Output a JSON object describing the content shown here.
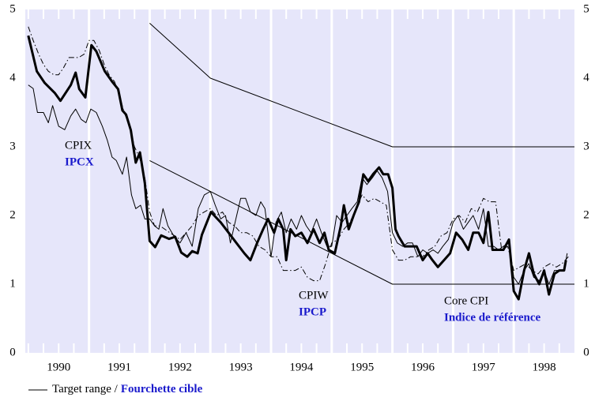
{
  "chart_data": {
    "type": "line",
    "xlim": [
      1989.95,
      1999.0
    ],
    "ylim": [
      0,
      5
    ],
    "yticks": [
      0,
      1,
      2,
      3,
      4,
      5
    ],
    "xticks": [
      {
        "value": 1990.5,
        "label": "1990"
      },
      {
        "value": 1991.5,
        "label": "1991"
      },
      {
        "value": 1992.5,
        "label": "1992"
      },
      {
        "value": 1993.5,
        "label": "1993"
      },
      {
        "value": 1994.5,
        "label": "1994"
      },
      {
        "value": 1995.5,
        "label": "1995"
      },
      {
        "value": 1996.5,
        "label": "1996"
      },
      {
        "value": 1997.5,
        "label": "1997"
      },
      {
        "value": 1998.5,
        "label": "1998"
      }
    ],
    "xgrid": [
      1991,
      1992,
      1993,
      1994,
      1995,
      1996,
      1997,
      1998
    ],
    "background": "#e6e6fa",
    "series": [
      {
        "name": "CPIX",
        "name_fr": "IPCX",
        "color": "#000000",
        "width": 3,
        "dash": "none",
        "x": [
          1990.0,
          1990.14,
          1990.27,
          1990.44,
          1990.53,
          1990.7,
          1990.78,
          1990.84,
          1990.94,
          1991.04,
          1991.12,
          1991.26,
          1991.38,
          1991.48,
          1991.55,
          1991.61,
          1991.69,
          1991.77,
          1991.84,
          1991.92,
          1992.0,
          1992.09,
          1992.19,
          1992.32,
          1992.42,
          1992.52,
          1992.62,
          1992.7,
          1992.79,
          1992.86,
          1993.01,
          1993.17,
          1993.3,
          1993.43,
          1993.56,
          1993.66,
          1993.77,
          1993.87,
          1993.95,
          1994.05,
          1994.12,
          1994.2,
          1994.25,
          1994.32,
          1994.4,
          1994.5,
          1994.6,
          1994.7,
          1994.8,
          1994.88,
          1994.95,
          1995.05,
          1995.15,
          1995.2,
          1995.28,
          1995.36,
          1995.45,
          1995.52,
          1995.6,
          1995.68,
          1995.78,
          1995.85,
          1995.93,
          1996.0,
          1996.05,
          1996.1,
          1996.2,
          1996.3,
          1996.4,
          1996.5,
          1996.58,
          1996.66,
          1996.75,
          1996.85,
          1996.95,
          1997.05,
          1997.15,
          1997.25,
          1997.33,
          1997.42,
          1997.5,
          1997.58,
          1997.65,
          1997.75,
          1997.83,
          1997.92,
          1998.0,
          1998.08,
          1998.17,
          1998.25,
          1998.33,
          1998.42,
          1998.5,
          1998.58,
          1998.67,
          1998.75,
          1998.83,
          1998.86
        ],
        "values": [
          4.62,
          4.1,
          3.93,
          3.78,
          3.67,
          3.9,
          4.08,
          3.84,
          3.72,
          4.48,
          4.39,
          4.1,
          3.95,
          3.84,
          3.53,
          3.47,
          3.24,
          2.77,
          2.92,
          2.47,
          1.63,
          1.54,
          1.71,
          1.66,
          1.69,
          1.46,
          1.4,
          1.48,
          1.45,
          1.72,
          2.05,
          1.9,
          1.75,
          1.6,
          1.45,
          1.35,
          1.6,
          1.8,
          1.95,
          1.75,
          1.95,
          1.8,
          1.35,
          1.8,
          1.7,
          1.75,
          1.6,
          1.8,
          1.6,
          1.75,
          1.5,
          1.45,
          1.85,
          2.15,
          1.8,
          2.0,
          2.2,
          2.6,
          2.5,
          2.6,
          2.7,
          2.6,
          2.6,
          2.4,
          1.8,
          1.7,
          1.55,
          1.55,
          1.55,
          1.35,
          1.45,
          1.35,
          1.25,
          1.35,
          1.45,
          1.75,
          1.65,
          1.5,
          1.75,
          1.75,
          1.6,
          2.05,
          1.5,
          1.5,
          1.5,
          1.65,
          0.9,
          0.78,
          1.2,
          1.45,
          1.15,
          1.0,
          1.2,
          0.85,
          1.15,
          1.2,
          1.2,
          1.35
        ]
      },
      {
        "name": "CPIW",
        "name_fr": "IPCP",
        "color": "#000000",
        "width": 1,
        "dash": "none",
        "x": [
          1990.0,
          1990.08,
          1990.15,
          1990.25,
          1990.33,
          1990.4,
          1990.5,
          1990.6,
          1990.7,
          1990.78,
          1990.87,
          1990.95,
          1991.03,
          1991.12,
          1991.22,
          1991.3,
          1991.38,
          1991.45,
          1991.55,
          1991.62,
          1991.7,
          1991.77,
          1991.85,
          1991.92,
          1992.0,
          1992.08,
          1992.15,
          1992.22,
          1992.3,
          1992.4,
          1992.5,
          1992.6,
          1992.7,
          1992.8,
          1992.9,
          1993.0,
          1993.08,
          1993.17,
          1993.25,
          1993.33,
          1993.42,
          1993.5,
          1993.58,
          1993.66,
          1993.75,
          1993.83,
          1993.9,
          1994.0,
          1994.08,
          1994.17,
          1994.25,
          1994.33,
          1994.42,
          1994.5,
          1994.58,
          1994.66,
          1994.75,
          1994.83,
          1994.92,
          1995.0,
          1995.08,
          1995.17,
          1995.25,
          1995.33,
          1995.42,
          1995.5,
          1995.58,
          1995.67,
          1995.75,
          1995.83,
          1995.92,
          1996.0,
          1996.08,
          1996.17,
          1996.25,
          1996.33,
          1996.42,
          1996.5,
          1996.58,
          1996.67,
          1996.75,
          1996.83,
          1996.92,
          1997.0,
          1997.08,
          1997.17,
          1997.25,
          1997.33,
          1997.42,
          1997.5,
          1997.58,
          1997.67,
          1997.75,
          1997.83,
          1997.92,
          1998.0,
          1998.08,
          1998.17,
          1998.25,
          1998.33,
          1998.42,
          1998.5,
          1998.58,
          1998.67,
          1998.75,
          1998.83,
          1998.88
        ],
        "values": [
          3.9,
          3.85,
          3.5,
          3.5,
          3.35,
          3.6,
          3.3,
          3.25,
          3.45,
          3.55,
          3.4,
          3.35,
          3.55,
          3.5,
          3.3,
          3.1,
          2.85,
          2.8,
          2.6,
          2.85,
          2.3,
          2.1,
          2.15,
          1.95,
          1.95,
          1.85,
          1.8,
          2.1,
          1.85,
          1.7,
          1.6,
          1.75,
          1.55,
          2.1,
          2.3,
          2.35,
          2.15,
          1.95,
          2.0,
          1.6,
          1.95,
          2.25,
          2.25,
          2.05,
          2.0,
          2.2,
          2.1,
          1.4,
          1.9,
          2.05,
          1.75,
          1.95,
          1.8,
          2.0,
          1.85,
          1.75,
          1.95,
          1.75,
          1.55,
          1.55,
          2.0,
          1.9,
          2.0,
          2.1,
          2.2,
          2.55,
          2.45,
          2.55,
          2.65,
          2.55,
          2.35,
          1.75,
          1.6,
          1.55,
          1.6,
          1.6,
          1.4,
          1.5,
          1.45,
          1.5,
          1.45,
          1.55,
          1.65,
          1.9,
          2.0,
          1.8,
          1.9,
          2.0,
          1.8,
          2.1,
          1.55,
          1.55,
          1.5,
          1.55,
          1.6,
          1.1,
          1.0,
          1.2,
          1.3,
          1.1,
          1.05,
          1.2,
          1.0,
          1.2,
          1.2,
          1.2,
          1.45
        ]
      },
      {
        "name": "Core CPI",
        "name_fr": "Indice de référence",
        "color": "#000000",
        "width": 1,
        "dash": "7 3 1.5 3",
        "x": [
          1990.0,
          1990.08,
          1990.17,
          1990.25,
          1990.33,
          1990.42,
          1990.5,
          1990.58,
          1990.67,
          1990.75,
          1990.83,
          1990.92,
          1991.0,
          1991.08,
          1991.17,
          1991.25,
          1991.33,
          1991.42,
          1991.5,
          1991.58,
          1991.67,
          1991.75,
          1991.83,
          1991.92,
          1992.0,
          1992.08,
          1992.17,
          1992.25,
          1992.33,
          1992.42,
          1992.5,
          1992.6,
          1992.7,
          1992.8,
          1992.9,
          1993.0,
          1993.1,
          1993.2,
          1993.3,
          1993.4,
          1993.5,
          1993.6,
          1993.7,
          1993.8,
          1993.9,
          1994.0,
          1994.1,
          1994.2,
          1994.3,
          1994.4,
          1994.5,
          1994.6,
          1994.7,
          1994.8,
          1994.9,
          1995.0,
          1995.1,
          1995.2,
          1995.3,
          1995.4,
          1995.5,
          1995.6,
          1995.7,
          1995.8,
          1995.9,
          1996.0,
          1996.1,
          1996.2,
          1996.3,
          1996.4,
          1996.5,
          1996.6,
          1996.7,
          1996.8,
          1996.9,
          1997.0,
          1997.1,
          1997.2,
          1997.3,
          1997.4,
          1997.5,
          1997.6,
          1997.7,
          1997.8,
          1997.9,
          1998.0,
          1998.1,
          1998.2,
          1998.3,
          1998.4,
          1998.5,
          1998.6,
          1998.7,
          1998.8,
          1998.9
        ],
        "values": [
          4.75,
          4.55,
          4.35,
          4.2,
          4.1,
          4.05,
          4.05,
          4.15,
          4.3,
          4.3,
          4.3,
          4.35,
          4.55,
          4.55,
          4.4,
          4.2,
          4.05,
          3.95,
          3.75,
          3.5,
          3.3,
          3.0,
          2.85,
          2.55,
          2.05,
          1.85,
          1.85,
          1.8,
          1.75,
          1.7,
          1.65,
          1.75,
          1.85,
          2.0,
          2.05,
          2.1,
          2.0,
          2.05,
          1.9,
          1.85,
          1.75,
          1.75,
          1.7,
          1.55,
          1.5,
          1.4,
          1.4,
          1.2,
          1.2,
          1.2,
          1.25,
          1.1,
          1.05,
          1.05,
          1.3,
          1.6,
          1.65,
          1.8,
          1.9,
          2.1,
          2.3,
          2.2,
          2.25,
          2.2,
          2.15,
          1.5,
          1.35,
          1.35,
          1.4,
          1.4,
          1.4,
          1.5,
          1.55,
          1.7,
          1.75,
          1.95,
          2.0,
          1.9,
          2.1,
          2.05,
          2.25,
          2.2,
          2.2,
          1.5,
          1.55,
          1.2,
          1.25,
          1.3,
          1.2,
          1.15,
          1.25,
          1.3,
          1.25,
          1.3,
          1.4
        ]
      }
    ],
    "target_range": {
      "name": "Target range /",
      "name_fr": "Fourchette cible",
      "color": "#000000",
      "upper": {
        "x": [
          1992.0,
          1993.0,
          1996.0,
          1999.0
        ],
        "values": [
          4.8,
          4.0,
          3.0,
          3.0
        ]
      },
      "lower": {
        "x": [
          1992.0,
          1996.0,
          1999.0
        ],
        "values": [
          2.8,
          1.0,
          1.0
        ]
      }
    }
  }
}
